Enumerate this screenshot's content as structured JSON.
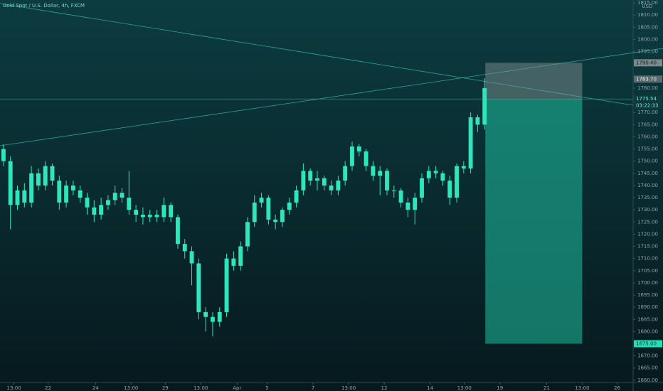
{
  "chart_data": {
    "type": "candlestick",
    "title": "Gold Spot / U.S. Dollar, 4h, FXCM",
    "currency": "USD",
    "color": "#2ee6bd",
    "open": [
      1755,
      1750,
      1732,
      1738,
      1733,
      1745,
      1740,
      1748,
      1742,
      1733,
      1740,
      1738,
      1735,
      1731,
      1728,
      1732,
      1734,
      1737,
      1735,
      1730,
      1728,
      1727,
      1728,
      1727,
      1732,
      1727,
      1716,
      1713,
      1708,
      1688,
      1686,
      1684,
      1688,
      1710,
      1707,
      1715,
      1725,
      1733,
      1735,
      1726,
      1725,
      1730,
      1733,
      1738,
      1746,
      1742,
      1743,
      1740,
      1738,
      1742,
      1748,
      1756,
      1754,
      1748,
      1744,
      1746,
      1738,
      1738,
      1733,
      1730,
      1735,
      1743,
      1746,
      1745,
      1742,
      1735,
      1748,
      1747,
      1768,
      1765
    ],
    "high": [
      1757,
      1752,
      1740,
      1741,
      1748,
      1747,
      1750,
      1749,
      1744,
      1742,
      1742,
      1740,
      1737,
      1734,
      1735,
      1736,
      1740,
      1739,
      1746,
      1732,
      1731,
      1730,
      1730,
      1735,
      1733,
      1728,
      1718,
      1715,
      1710,
      1690,
      1688,
      1690,
      1712,
      1713,
      1717,
      1727,
      1736,
      1737,
      1736,
      1728,
      1731,
      1735,
      1740,
      1749,
      1747,
      1746,
      1744,
      1742,
      1744,
      1750,
      1758,
      1757,
      1755,
      1750,
      1748,
      1747,
      1740,
      1739,
      1735,
      1737,
      1745,
      1748,
      1748,
      1746,
      1744,
      1749,
      1750,
      1770,
      1769,
      1784
    ],
    "low": [
      1748,
      1722,
      1730,
      1731,
      1731,
      1738,
      1738,
      1740,
      1730,
      1731,
      1736,
      1733,
      1728,
      1725,
      1726,
      1730,
      1732,
      1733,
      1728,
      1725,
      1724,
      1725,
      1725,
      1725,
      1725,
      1714,
      1710,
      1699,
      1685,
      1680,
      1678,
      1682,
      1686,
      1705,
      1705,
      1713,
      1723,
      1731,
      1724,
      1722,
      1723,
      1728,
      1731,
      1736,
      1740,
      1738,
      1738,
      1736,
      1736,
      1740,
      1746,
      1752,
      1746,
      1742,
      1736,
      1736,
      1735,
      1731,
      1727,
      1724,
      1733,
      1741,
      1743,
      1740,
      1732,
      1733,
      1745,
      1745,
      1762,
      1763
    ],
    "close": [
      1750,
      1732,
      1738,
      1733,
      1745,
      1740,
      1748,
      1742,
      1733,
      1740,
      1738,
      1735,
      1731,
      1728,
      1732,
      1734,
      1737,
      1735,
      1730,
      1728,
      1727,
      1728,
      1727,
      1732,
      1727,
      1716,
      1713,
      1708,
      1688,
      1686,
      1684,
      1688,
      1710,
      1707,
      1715,
      1725,
      1733,
      1735,
      1726,
      1725,
      1730,
      1733,
      1738,
      1746,
      1742,
      1743,
      1740,
      1738,
      1742,
      1748,
      1756,
      1754,
      1748,
      1744,
      1746,
      1738,
      1738,
      1733,
      1730,
      1735,
      1743,
      1746,
      1745,
      1742,
      1735,
      1748,
      1747,
      1768,
      1765,
      1780
    ],
    "xlim": [
      -0.5,
      90.3
    ],
    "xticks": [
      {
        "value": 1.5,
        "label": "13:00"
      },
      {
        "value": 6.4,
        "label": "22"
      },
      {
        "value": 13.2,
        "label": "24"
      },
      {
        "value": 18.3,
        "label": "13:00"
      },
      {
        "value": 23.2,
        "label": "29"
      },
      {
        "value": 28.3,
        "label": "13:00"
      },
      {
        "value": 33.5,
        "label": "Apr"
      },
      {
        "value": 37.8,
        "label": "5"
      },
      {
        "value": 44.4,
        "label": "7"
      },
      {
        "value": 49.5,
        "label": "13:00"
      },
      {
        "value": 54.6,
        "label": "12"
      },
      {
        "value": 61.2,
        "label": "14"
      },
      {
        "value": 66.1,
        "label": "13:00"
      },
      {
        "value": 71.2,
        "label": "19"
      },
      {
        "value": 77.9,
        "label": "21"
      },
      {
        "value": 83.0,
        "label": "13:00"
      },
      {
        "value": 88.0,
        "label": "26"
      }
    ],
    "ylim": [
      1658.5,
      1816.2
    ],
    "yticks": [
      {
        "value": 1660,
        "label": "1660.00"
      },
      {
        "value": 1665,
        "label": "1665.00"
      },
      {
        "value": 1670,
        "label": "1670.00"
      },
      {
        "value": 1680,
        "label": "1680.00"
      },
      {
        "value": 1685,
        "label": "1685.00"
      },
      {
        "value": 1690,
        "label": "1690.00"
      },
      {
        "value": 1695,
        "label": "1695.00"
      },
      {
        "value": 1700,
        "label": "1700.00"
      },
      {
        "value": 1705,
        "label": "1705.00"
      },
      {
        "value": 1710,
        "label": "1710.00"
      },
      {
        "value": 1715,
        "label": "1715.00"
      },
      {
        "value": 1720,
        "label": "1720.00"
      },
      {
        "value": 1725,
        "label": "1725.00"
      },
      {
        "value": 1730,
        "label": "1730.00"
      },
      {
        "value": 1735,
        "label": "1735.00"
      },
      {
        "value": 1740,
        "label": "1740.00"
      },
      {
        "value": 1745,
        "label": "1745.00"
      },
      {
        "value": 1750,
        "label": "1750.00"
      },
      {
        "value": 1755,
        "label": "1755.00"
      },
      {
        "value": 1760,
        "label": "1760.00"
      },
      {
        "value": 1765,
        "label": "1765.00"
      },
      {
        "value": 1770,
        "label": "1770.00"
      },
      {
        "value": 1780,
        "label": "1780.00"
      },
      {
        "value": 1795,
        "label": "1795.00"
      },
      {
        "value": 1800,
        "label": "1800.00"
      },
      {
        "value": 1805,
        "label": "1805.00"
      },
      {
        "value": 1810,
        "label": "1810.00"
      },
      {
        "value": 1815,
        "label": "1815.00"
      }
    ],
    "position": {
      "stop": {
        "value": 1790.4,
        "label": "1790.40"
      },
      "entry": {
        "value": 1775.54,
        "label": "1775.54"
      },
      "target": {
        "value": 1675,
        "label": "1675.00"
      },
      "start": 69.1,
      "end": 83.0
    },
    "last_high": {
      "value": 1783.7,
      "label": "1783.70"
    },
    "countdown": "03:22:33"
  }
}
